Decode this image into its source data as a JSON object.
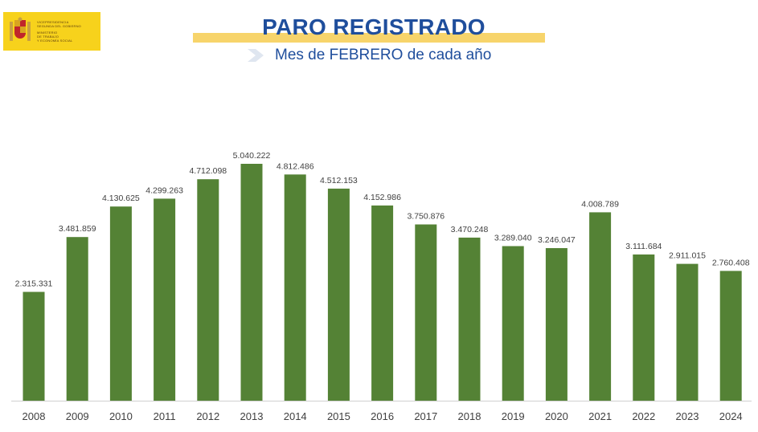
{
  "logo": {
    "lines_top": [
      "VICEPRESIDENCIA",
      "SEGUNDA DEL GOBIERNO"
    ],
    "lines_bottom": [
      "MINISTERIO",
      "DE TRABAJO",
      "Y ECONOMÍA SOCIAL"
    ]
  },
  "header": {
    "title": "PARO REGISTRADO",
    "subtitle": "Mes de FEBRERO de cada año"
  },
  "colors": {
    "bar": "#548235",
    "title": "#1f4e9c",
    "highlight": "#f7d46b",
    "logo_bg": "#f7d21c"
  },
  "chart_data": {
    "type": "bar",
    "title": "PARO REGISTRADO",
    "subtitle": "Mes de FEBRERO de cada año",
    "categories": [
      "2008",
      "2009",
      "2010",
      "2011",
      "2012",
      "2013",
      "2014",
      "2015",
      "2016",
      "2017",
      "2018",
      "2019",
      "2020",
      "2021",
      "2022",
      "2023",
      "2024"
    ],
    "values": [
      2315331,
      3481859,
      4130625,
      4299263,
      4712098,
      5040222,
      4812486,
      4512153,
      4152986,
      3750876,
      3470248,
      3289040,
      3246047,
      4008789,
      3111684,
      2911015,
      2760408
    ],
    "value_labels": [
      "2.315.331",
      "3.481.859",
      "4.130.625",
      "4.299.263",
      "4.712.098",
      "5.040.222",
      "4.812.486",
      "4.512.153",
      "4.152.986",
      "3.750.876",
      "3.470.248",
      "3.289.040",
      "3.246.047",
      "4.008.789",
      "3.111.684",
      "2.911.015",
      "2.760.408"
    ],
    "xlabel": "",
    "ylabel": "",
    "ylim": [
      0,
      5040222
    ],
    "grid": false,
    "legend": "none"
  }
}
